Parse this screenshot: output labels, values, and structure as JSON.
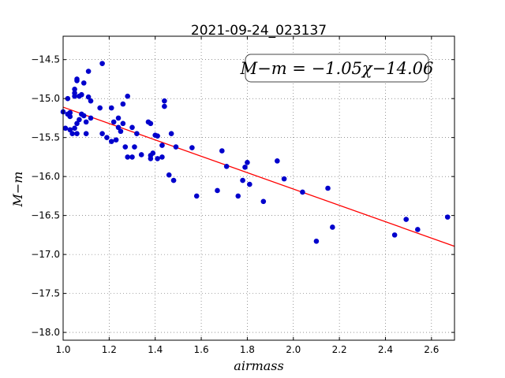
{
  "chart_data": {
    "type": "scatter",
    "title": "2021-09-24_023137",
    "xlabel": "airmass",
    "ylabel": "M−m",
    "xlim": [
      1.0,
      2.7
    ],
    "ylim": [
      -14.2,
      -18.1
    ],
    "y_inverted": true,
    "grid": true,
    "xticks": [
      1.0,
      1.2,
      1.4,
      1.6,
      1.8,
      2.0,
      2.2,
      2.4,
      2.6
    ],
    "xtick_labels": [
      "1.0",
      "1.2",
      "1.4",
      "1.6",
      "1.8",
      "2.0",
      "2.2",
      "2.4",
      "2.6"
    ],
    "yticks": [
      -14.5,
      -15.0,
      -15.5,
      -16.0,
      -16.5,
      -17.0,
      -17.5,
      -18.0
    ],
    "ytick_labels": [
      "−14.5",
      "−15.0",
      "−15.5",
      "−16.0",
      "−16.5",
      "−17.0",
      "−17.5",
      "−18.0"
    ],
    "annotation": "M−m = −1.05χ−14.06",
    "fit": {
      "slope": -1.05,
      "intercept": -14.06,
      "color": "#ff0000"
    },
    "point_color": "#0000cc",
    "points": [
      [
        1.0,
        -15.17
      ],
      [
        1.01,
        -15.38
      ],
      [
        1.02,
        -15.0
      ],
      [
        1.02,
        -15.2
      ],
      [
        1.03,
        -15.18
      ],
      [
        1.03,
        -15.23
      ],
      [
        1.03,
        -15.4
      ],
      [
        1.04,
        -15.45
      ],
      [
        1.05,
        -14.97
      ],
      [
        1.05,
        -14.88
      ],
      [
        1.05,
        -14.93
      ],
      [
        1.05,
        -15.38
      ],
      [
        1.06,
        -14.77
      ],
      [
        1.06,
        -14.75
      ],
      [
        1.06,
        -15.32
      ],
      [
        1.06,
        -15.45
      ],
      [
        1.07,
        -14.97
      ],
      [
        1.07,
        -15.27
      ],
      [
        1.08,
        -14.95
      ],
      [
        1.08,
        -15.2
      ],
      [
        1.09,
        -15.22
      ],
      [
        1.09,
        -14.8
      ],
      [
        1.1,
        -15.45
      ],
      [
        1.1,
        -15.3
      ],
      [
        1.11,
        -14.98
      ],
      [
        1.11,
        -14.65
      ],
      [
        1.12,
        -15.03
      ],
      [
        1.12,
        -15.25
      ],
      [
        1.16,
        -15.12
      ],
      [
        1.17,
        -14.55
      ],
      [
        1.17,
        -15.45
      ],
      [
        1.19,
        -15.5
      ],
      [
        1.21,
        -15.12
      ],
      [
        1.21,
        -15.55
      ],
      [
        1.22,
        -15.3
      ],
      [
        1.23,
        -15.53
      ],
      [
        1.24,
        -15.37
      ],
      [
        1.24,
        -15.25
      ],
      [
        1.25,
        -15.42
      ],
      [
        1.26,
        -15.07
      ],
      [
        1.26,
        -15.32
      ],
      [
        1.27,
        -15.62
      ],
      [
        1.28,
        -15.75
      ],
      [
        1.28,
        -14.97
      ],
      [
        1.3,
        -15.75
      ],
      [
        1.3,
        -15.37
      ],
      [
        1.31,
        -15.62
      ],
      [
        1.32,
        -15.45
      ],
      [
        1.34,
        -15.72
      ],
      [
        1.37,
        -15.3
      ],
      [
        1.38,
        -15.32
      ],
      [
        1.38,
        -15.73
      ],
      [
        1.38,
        -15.77
      ],
      [
        1.39,
        -15.7
      ],
      [
        1.4,
        -15.47
      ],
      [
        1.41,
        -15.48
      ],
      [
        1.41,
        -15.77
      ],
      [
        1.43,
        -15.75
      ],
      [
        1.43,
        -15.6
      ],
      [
        1.44,
        -15.03
      ],
      [
        1.44,
        -15.1
      ],
      [
        1.46,
        -15.98
      ],
      [
        1.47,
        -15.45
      ],
      [
        1.48,
        -16.05
      ],
      [
        1.49,
        -15.62
      ],
      [
        1.56,
        -15.63
      ],
      [
        1.58,
        -16.25
      ],
      [
        1.67,
        -16.18
      ],
      [
        1.69,
        -15.67
      ],
      [
        1.71,
        -15.87
      ],
      [
        1.76,
        -16.25
      ],
      [
        1.78,
        -16.05
      ],
      [
        1.79,
        -15.88
      ],
      [
        1.8,
        -15.82
      ],
      [
        1.81,
        -16.1
      ],
      [
        1.87,
        -16.32
      ],
      [
        1.93,
        -15.8
      ],
      [
        1.96,
        -16.03
      ],
      [
        2.04,
        -16.2
      ],
      [
        2.1,
        -16.83
      ],
      [
        2.15,
        -16.15
      ],
      [
        2.17,
        -16.65
      ],
      [
        2.44,
        -16.75
      ],
      [
        2.49,
        -16.55
      ],
      [
        2.54,
        -16.68
      ],
      [
        2.67,
        -16.52
      ]
    ]
  }
}
